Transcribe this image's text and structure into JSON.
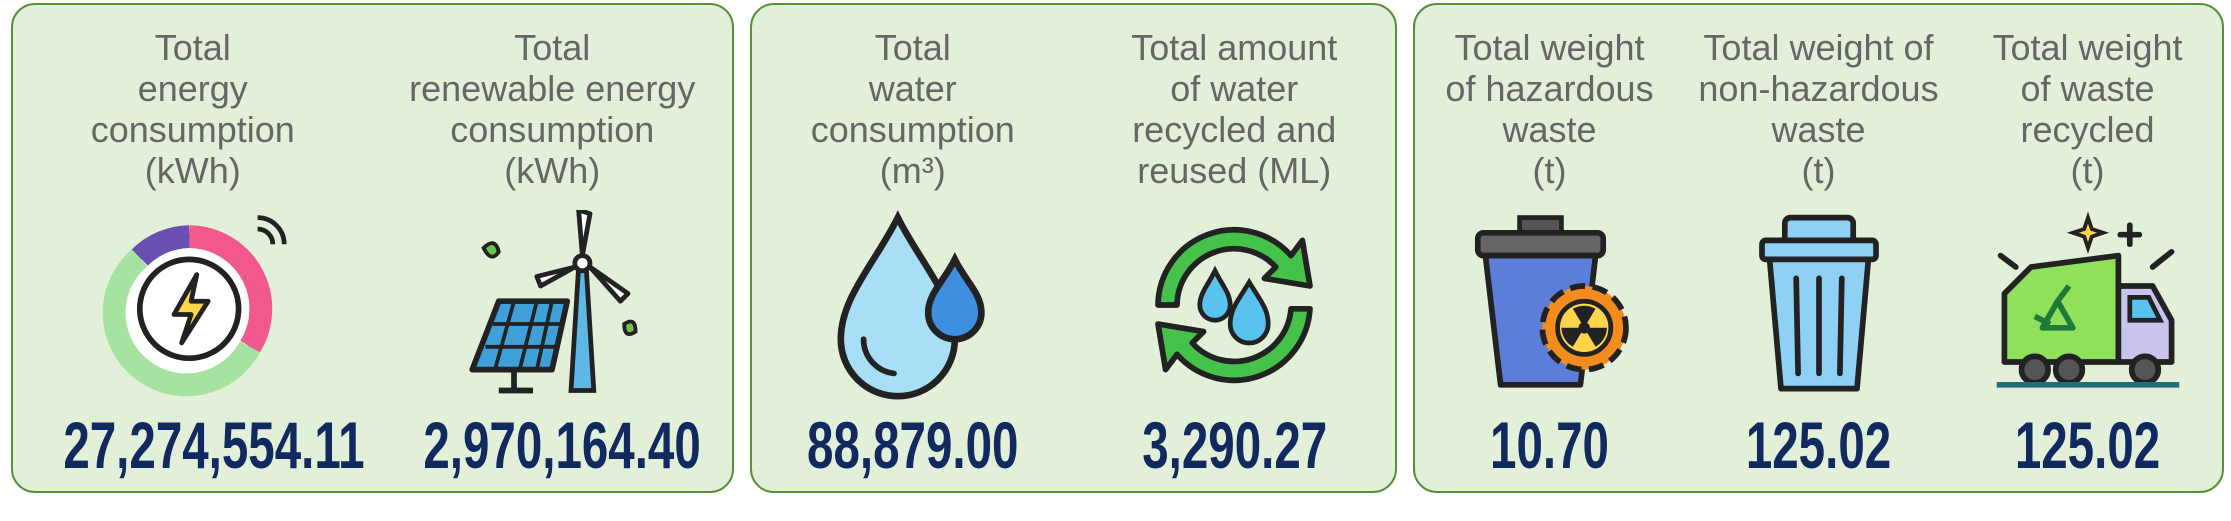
{
  "panels": [
    {
      "metrics": [
        {
          "label": [
            "Total",
            "energy",
            "consumption",
            "(kWh)"
          ],
          "value": "27,274,554.11"
        },
        {
          "label": [
            "Total",
            "renewable energy",
            "consumption",
            "(kWh)"
          ],
          "value": "2,970,164.40"
        }
      ]
    },
    {
      "metrics": [
        {
          "label": [
            "Total",
            "water",
            "consumption",
            "(m³)"
          ],
          "value": "88,879.00"
        },
        {
          "label": [
            "Total amount",
            "of water",
            "recycled and",
            "reused (ML)"
          ],
          "value": "3,290.27"
        }
      ]
    },
    {
      "metrics": [
        {
          "label": [
            "Total weight",
            "of hazardous",
            "waste",
            "(t)"
          ],
          "value": "10.70"
        },
        {
          "label": [
            "Total weight of",
            "non-hazardous",
            "waste",
            "(t)"
          ],
          "value": "125.02"
        },
        {
          "label": [
            "Total weight",
            "of waste",
            "recycled",
            "(t)"
          ],
          "value": "125.02"
        }
      ]
    }
  ]
}
